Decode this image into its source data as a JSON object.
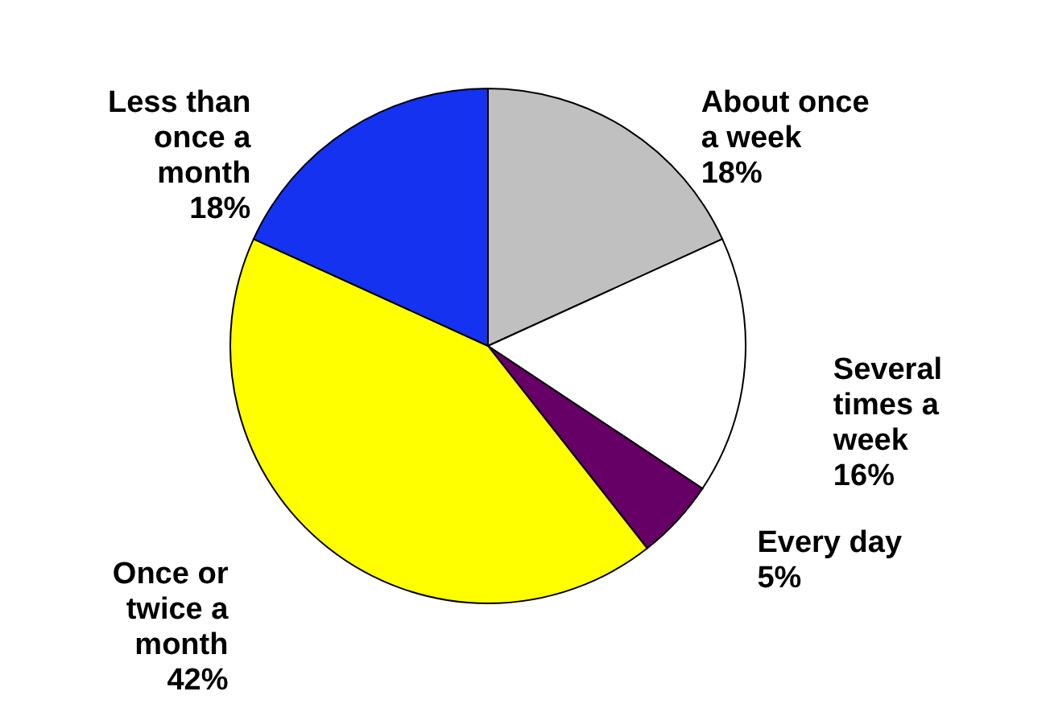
{
  "chart_data": {
    "type": "pie",
    "categories": [
      "About once a week",
      "Several times a week",
      "Every day",
      "Once or twice a month",
      "Less than once a month"
    ],
    "values": [
      18,
      16,
      5,
      42,
      18
    ],
    "value_labels": [
      "18%",
      "16%",
      "5%",
      "42%",
      "18%"
    ],
    "colors": [
      "#c0c0c0",
      "#ffffff",
      "#660066",
      "#ffff00",
      "#1432f0"
    ]
  }
}
